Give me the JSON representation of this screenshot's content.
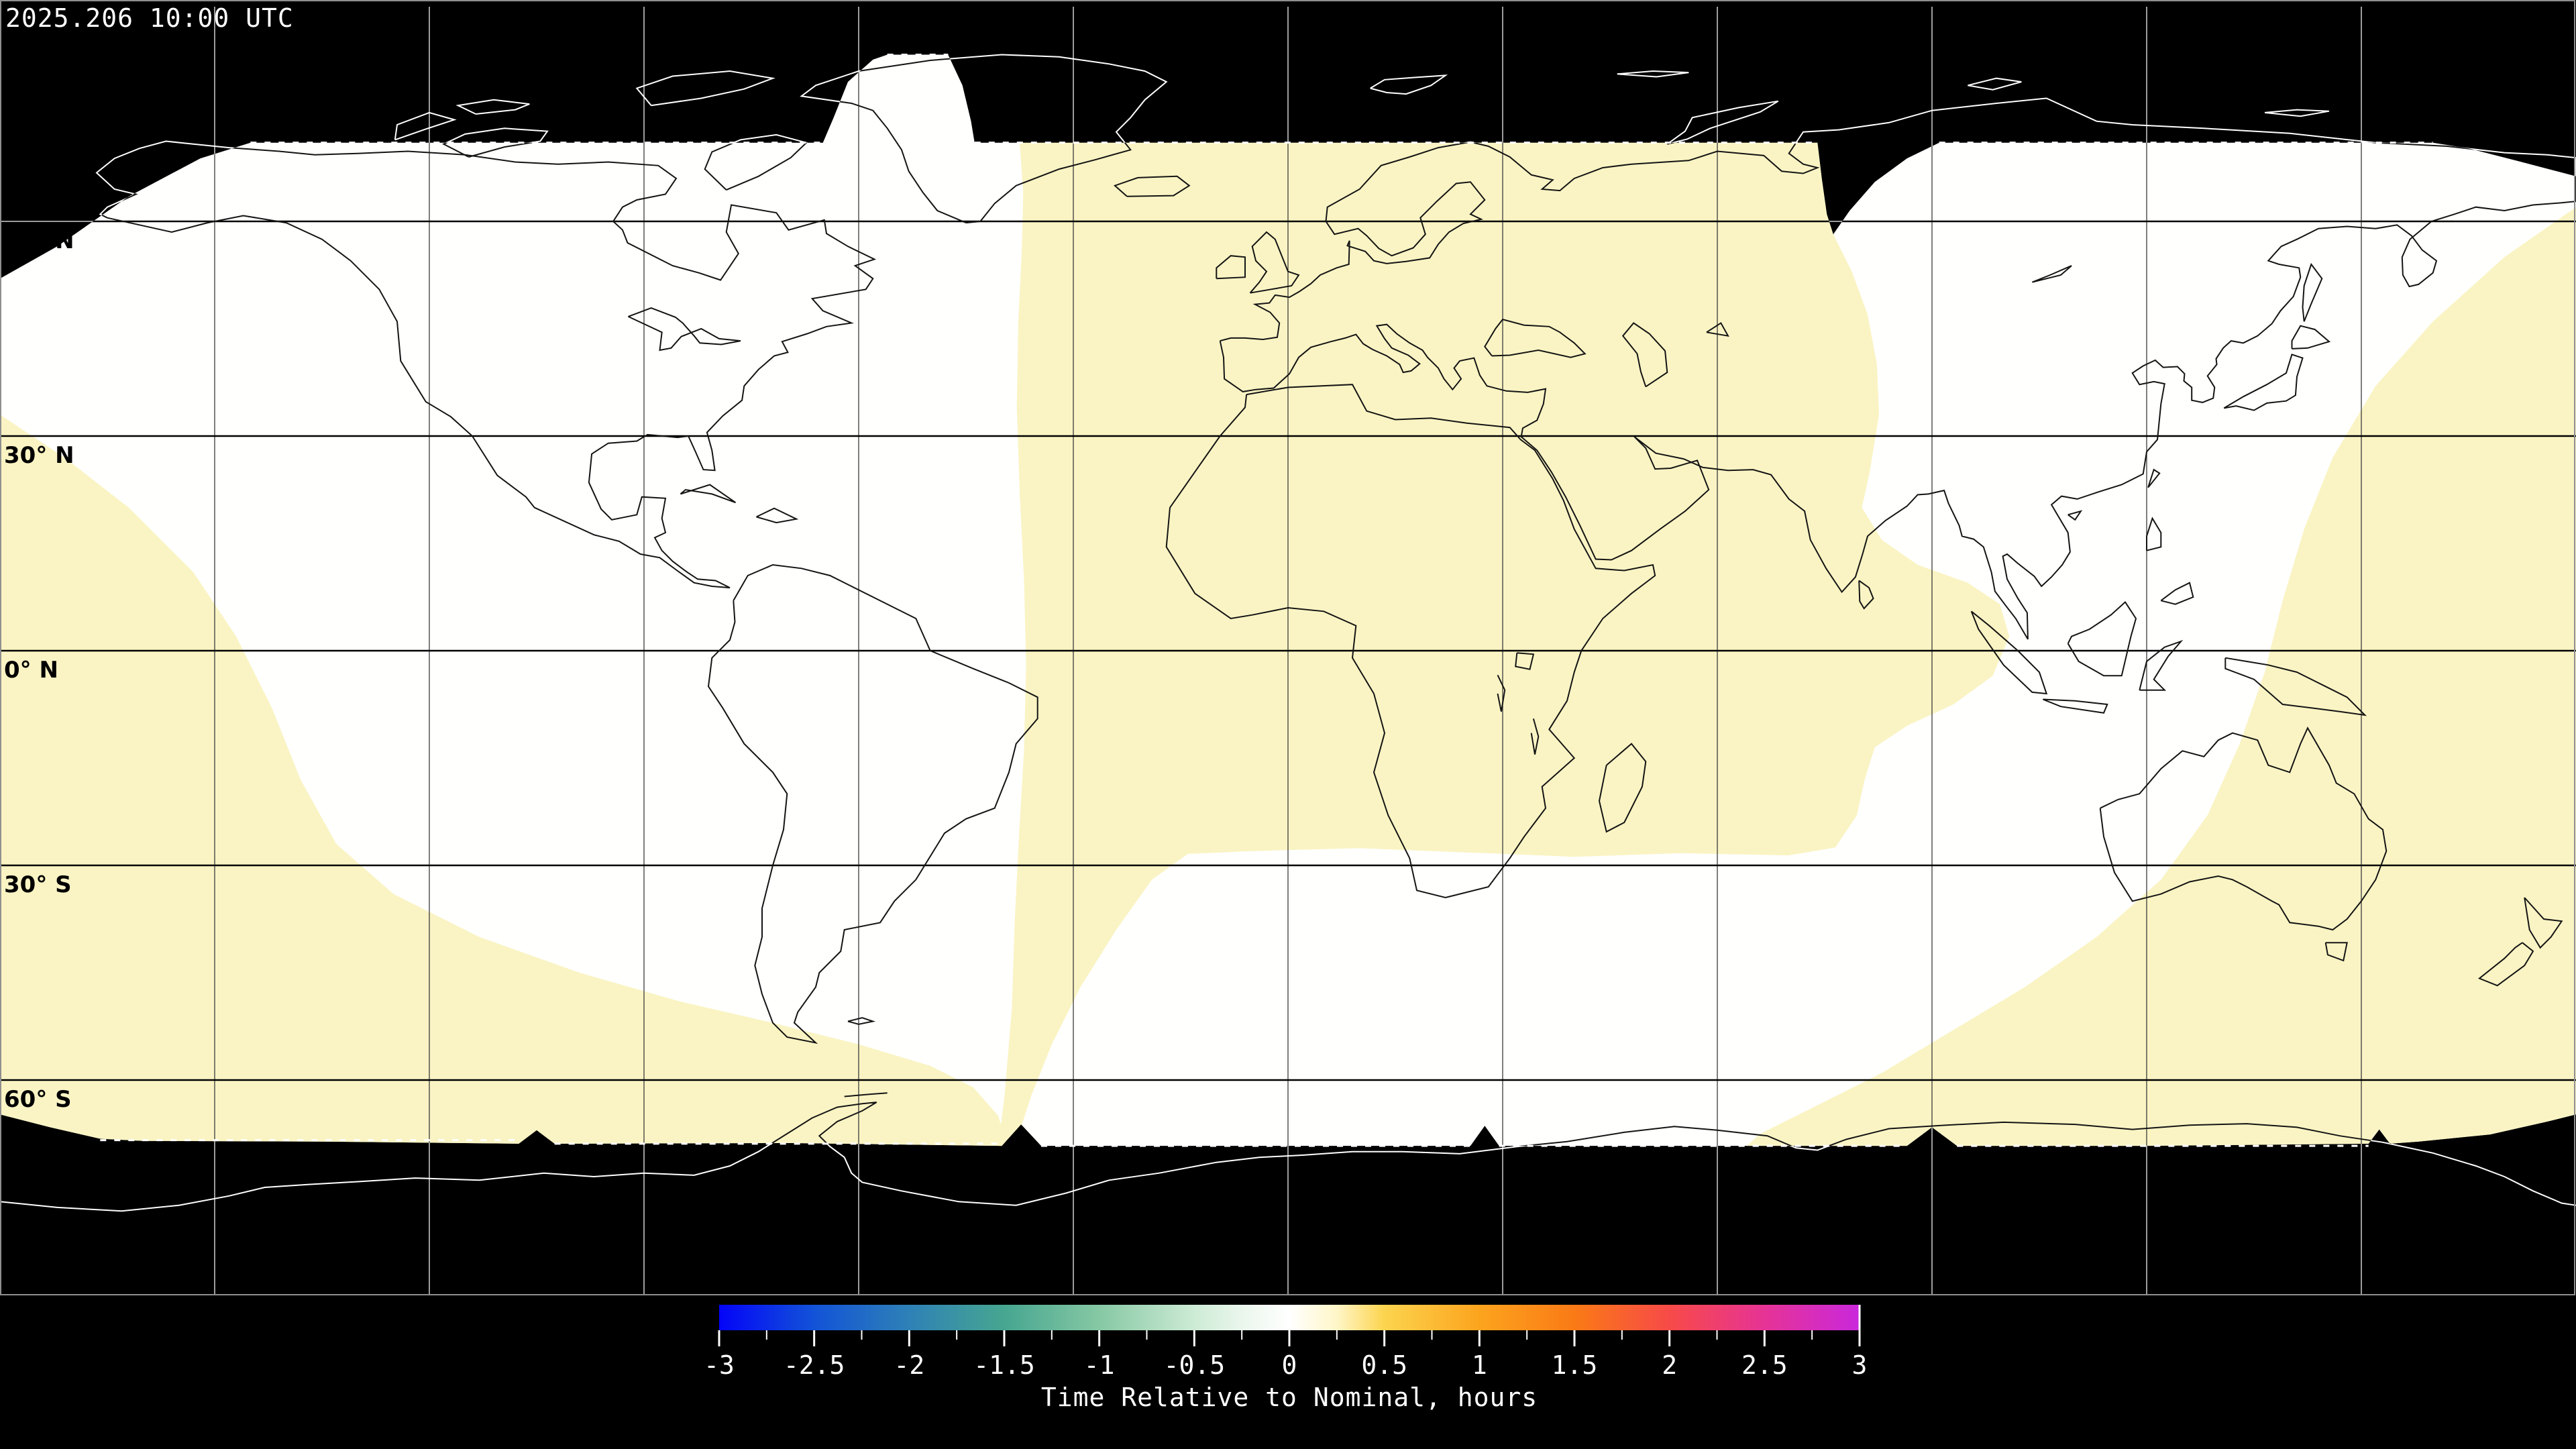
{
  "header": {
    "timestamp": "2025.206 10:00 UTC"
  },
  "map": {
    "latitude_labels": [
      "60° N",
      "30° N",
      "0° N",
      "30° S",
      "60° S"
    ],
    "grid_step_deg": 30,
    "colors": {
      "background": "#000000",
      "data_fill": "#fffffe",
      "late_fill": "#faf4c4",
      "coast_on_dark": "#ffffff",
      "coast_on_data": "#141414",
      "grid_on_dark": "#cfcfcf",
      "lon_grid_on_data": "#3a3a3a",
      "lat_grid_on_data": "#000000",
      "boundary_dash": "#ffffff",
      "frame": "#8f8f8f",
      "label_color": "#000000",
      "timestamp_color": "#ffffff"
    }
  },
  "colorbar": {
    "title": "Time Relative to Nominal, hours",
    "min_hours": -3,
    "max_hours": 3,
    "major_tick_step": 0.5,
    "minor_tick_step": 0.25,
    "tick_labels": [
      "-3",
      "-2.5",
      "-2",
      "-1.5",
      "-1",
      "-0.5",
      "0",
      "0.5",
      "1",
      "1.5",
      "2",
      "2.5",
      "3"
    ],
    "text_color": "#ffffff",
    "gradient_stops": [
      {
        "value": -3.0,
        "color": "#0404f8"
      },
      {
        "value": -2.5,
        "color": "#1253d8"
      },
      {
        "value": -2.0,
        "color": "#2e81b6"
      },
      {
        "value": -1.5,
        "color": "#46a690"
      },
      {
        "value": -1.0,
        "color": "#86c8a4"
      },
      {
        "value": -0.5,
        "color": "#cdebd5"
      },
      {
        "value": -0.25,
        "color": "#eaf6ec"
      },
      {
        "value": 0.0,
        "color": "#ffffff"
      },
      {
        "value": 0.25,
        "color": "#fff6c8"
      },
      {
        "value": 0.5,
        "color": "#fcd44e"
      },
      {
        "value": 1.0,
        "color": "#fca41e"
      },
      {
        "value": 1.5,
        "color": "#fa7a15"
      },
      {
        "value": 2.0,
        "color": "#f74a48"
      },
      {
        "value": 2.5,
        "color": "#e63396"
      },
      {
        "value": 3.0,
        "color": "#c928dc"
      }
    ]
  },
  "chart_data": {
    "type": "heatmap",
    "title": "Time Relative to Nominal, hours",
    "timestamp": "2025.206 10:00 UTC",
    "projection": "equirectangular world map, 30 degree graticule",
    "value_range_hours": [
      -3,
      3
    ],
    "colorbar_ticks": [
      -3,
      -2.5,
      -2,
      -1.5,
      -1,
      -0.5,
      0,
      0.5,
      1,
      1.5,
      2,
      2.5,
      3
    ],
    "regions": [
      {
        "area": "Europe / Africa / western Asia swath (lon ~ -37 to +95)",
        "value_hours": 0.3
      },
      {
        "area": "Americas / Atlantic swath",
        "value_hours": 0.0
      },
      {
        "area": "East Asia / Indian Ocean swath",
        "value_hours": 0.0
      },
      {
        "area": "SE Pacific and southern South America swath",
        "value_hours": 0.3
      },
      {
        "area": "Australia / west Pacific swath (to dateline)",
        "value_hours": 0.3
      },
      {
        "area": "Polar caps poleward of ~71N and ~69S",
        "value_hours": null
      }
    ]
  }
}
